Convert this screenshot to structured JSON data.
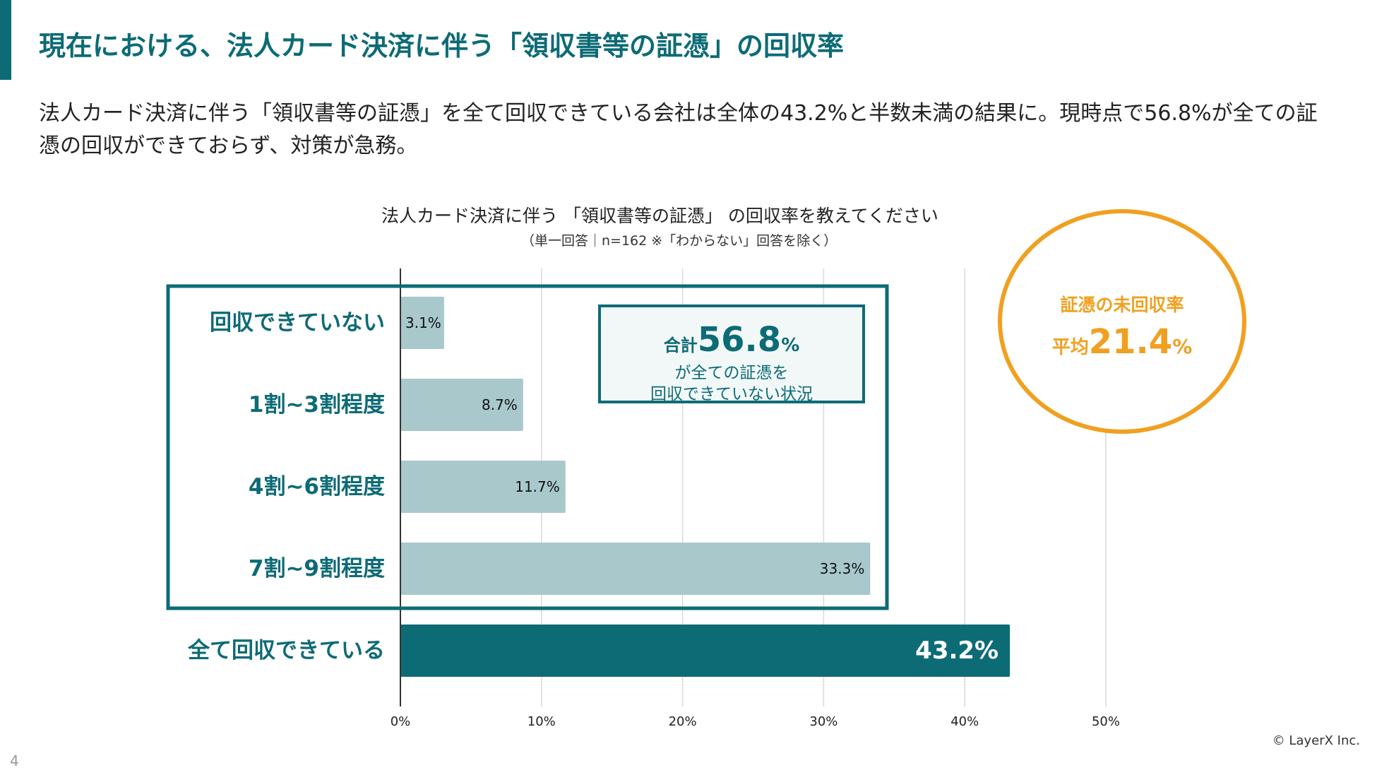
{
  "slide": {
    "title": "現在における、法人カード決済に伴う「領収書等の証憑」の回収率",
    "summary": "法人カード決済に伴う「領収書等の証憑」を全て回収できている会社は全体の43.2%と半数未満の結果に。現時点で56.8%が全ての証憑の回収ができておらず、対策が急務。",
    "page_number": "4",
    "copyright": "© LayerX Inc."
  },
  "chart_data": {
    "type": "bar",
    "orientation": "horizontal",
    "title": "法人カード決済に伴う 「領収書等の証憑」 の回収率を教えてください",
    "subtitle": "（単一回答｜n=162 ※「わからない」回答を除く）",
    "categories": [
      "回収できていない",
      "1割~3割程度",
      "4割~6割程度",
      "7割~9割程度",
      "全て回収できている"
    ],
    "values": [
      3.1,
      8.7,
      11.7,
      33.3,
      43.2
    ],
    "value_labels": [
      "3.1%",
      "8.7%",
      "11.7%",
      "33.3%",
      "43.2%"
    ],
    "highlight_index": 4,
    "xlim": [
      0,
      50
    ],
    "x_ticks": [
      "0%",
      "10%",
      "20%",
      "30%",
      "40%",
      "50%"
    ],
    "grid": true,
    "colors": {
      "bar": "#a8c8cc",
      "highlight": "#0d6b76",
      "accent": "#0d6b76",
      "orange": "#f0a020",
      "grid": "#d9d9d9"
    }
  },
  "callout_total": {
    "prefix": "合計",
    "value": "56.8",
    "unit": "%",
    "line1": "が全ての証憑を",
    "line2": "回収できていない状況"
  },
  "callout_avg": {
    "label": "証憑の未回収率",
    "prefix": "平均",
    "value": "21.4",
    "unit": "%"
  }
}
